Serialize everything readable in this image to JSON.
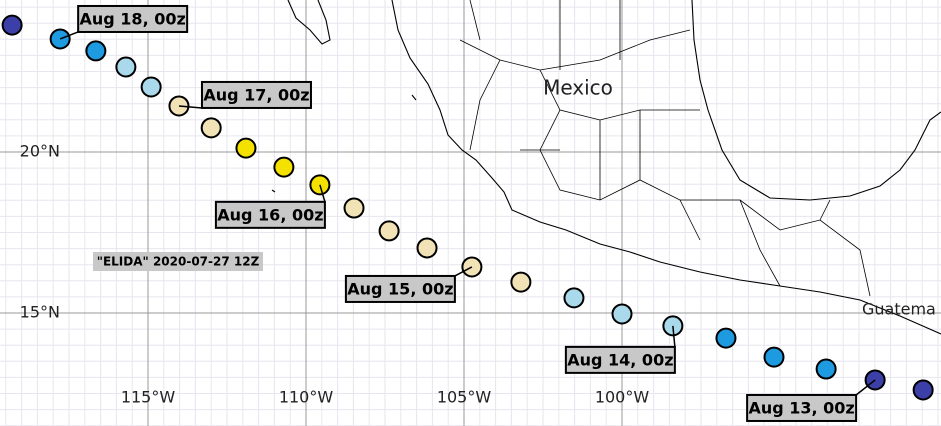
{
  "map": {
    "storm_label": "\"ELIDA\" 2020-07-27 12Z",
    "places": [
      "Mexico",
      "Guatema"
    ],
    "lon_ticks": [
      {
        "value": -115,
        "label": "115°W"
      },
      {
        "value": -110,
        "label": "110°W"
      },
      {
        "value": -105,
        "label": "105°W"
      },
      {
        "value": -100,
        "label": "100°W"
      }
    ],
    "lat_ticks": [
      {
        "value": 20,
        "label": "20°N"
      },
      {
        "value": 15,
        "label": "15°N"
      }
    ],
    "track": {
      "points": [
        {
          "lon": -119.3,
          "lat": 23.94,
          "color": "#3c3fa8"
        },
        {
          "lon": -117.78,
          "lat": 23.51,
          "color": "#1d9ae0",
          "label": "Aug 18, 00z"
        },
        {
          "lon": -116.65,
          "lat": 23.14,
          "color": "#1d9ae0"
        },
        {
          "lon": -115.7,
          "lat": 22.64,
          "color": "#a9d9ea"
        },
        {
          "lon": -114.9,
          "lat": 22.02,
          "color": "#a9d9ea"
        },
        {
          "lon": -114.02,
          "lat": 21.43,
          "color": "#f2e3b6",
          "label": "Aug 17, 00z"
        },
        {
          "lon": -113.0,
          "lat": 20.75,
          "color": "#f2e3b6"
        },
        {
          "lon": -111.9,
          "lat": 20.12,
          "color": "#f5e100"
        },
        {
          "lon": -110.7,
          "lat": 19.53,
          "color": "#f5e100"
        },
        {
          "lon": -109.56,
          "lat": 18.98,
          "color": "#f5e100",
          "label": "Aug 16, 00z"
        },
        {
          "lon": -108.48,
          "lat": 18.26,
          "color": "#f2e3b6"
        },
        {
          "lon": -107.37,
          "lat": 17.55,
          "color": "#f2e3b6"
        },
        {
          "lon": -106.17,
          "lat": 17.02,
          "color": "#f2e3b6"
        },
        {
          "lon": -104.75,
          "lat": 16.43,
          "color": "#f2e3b6",
          "label": "Aug 15, 00z"
        },
        {
          "lon": -103.2,
          "lat": 15.96,
          "color": "#f2e3b6"
        },
        {
          "lon": -101.52,
          "lat": 15.47,
          "color": "#a9d9ea"
        },
        {
          "lon": -100.0,
          "lat": 14.97,
          "color": "#a9d9ea"
        },
        {
          "lon": -98.39,
          "lat": 14.6,
          "color": "#a9d9ea",
          "label": "Aug 14, 00z"
        },
        {
          "lon": -96.71,
          "lat": 14.22,
          "color": "#1d9ae0"
        },
        {
          "lon": -95.19,
          "lat": 13.63,
          "color": "#1d9ae0"
        },
        {
          "lon": -93.54,
          "lat": 13.26,
          "color": "#1d9ae0"
        },
        {
          "lon": -91.99,
          "lat": 12.92,
          "color": "#3c3fa8",
          "label": "Aug 13, 00z"
        },
        {
          "lon": -90.47,
          "lat": 12.61,
          "color": "#3c3fa8"
        }
      ]
    }
  }
}
